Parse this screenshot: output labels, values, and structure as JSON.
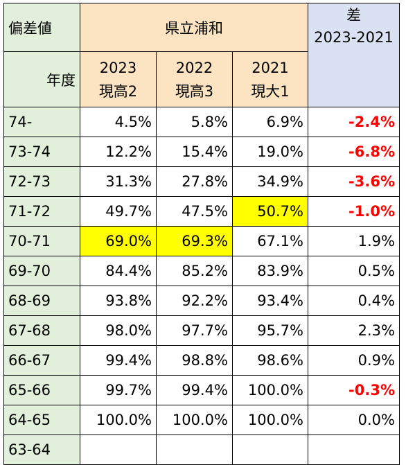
{
  "header": {
    "corner_label": "偏差値",
    "school": "県立浦和",
    "diff_label_line1": "差",
    "diff_label_line2": "2023-2021",
    "year_label": "年度",
    "years": [
      {
        "year": "2023",
        "grade": "現高2"
      },
      {
        "year": "2022",
        "grade": "現高3"
      },
      {
        "year": "2021",
        "grade": "現大1"
      }
    ]
  },
  "rows": [
    {
      "range": "74-",
      "v2023": "4.5%",
      "v2022": "5.8%",
      "v2021": "6.9%",
      "diff": "-2.4%"
    },
    {
      "range": "73-74",
      "v2023": "12.2%",
      "v2022": "15.4%",
      "v2021": "19.0%",
      "diff": "-6.8%"
    },
    {
      "range": "72-73",
      "v2023": "31.3%",
      "v2022": "27.8%",
      "v2021": "34.9%",
      "diff": "-3.6%"
    },
    {
      "range": "71-72",
      "v2023": "49.7%",
      "v2022": "47.5%",
      "v2021": "50.7%",
      "diff": "-1.0%"
    },
    {
      "range": "70-71",
      "v2023": "69.0%",
      "v2022": "69.3%",
      "v2021": "67.1%",
      "diff": "1.9%"
    },
    {
      "range": "69-70",
      "v2023": "84.4%",
      "v2022": "85.2%",
      "v2021": "83.9%",
      "diff": "0.5%"
    },
    {
      "range": "68-69",
      "v2023": "93.8%",
      "v2022": "92.2%",
      "v2021": "93.4%",
      "diff": "0.4%"
    },
    {
      "range": "67-68",
      "v2023": "98.0%",
      "v2022": "97.7%",
      "v2021": "95.7%",
      "diff": "2.3%"
    },
    {
      "range": "66-67",
      "v2023": "99.4%",
      "v2022": "98.8%",
      "v2021": "98.6%",
      "diff": "0.9%"
    },
    {
      "range": "65-66",
      "v2023": "99.7%",
      "v2022": "99.4%",
      "v2021": "100.0%",
      "diff": "-0.3%"
    },
    {
      "range": "64-65",
      "v2023": "100.0%",
      "v2022": "100.0%",
      "v2021": "100.0%",
      "diff": "0.0%"
    },
    {
      "range": "63-64",
      "v2023": "",
      "v2022": "",
      "v2021": "",
      "diff": ""
    }
  ],
  "colors": {
    "label_bg": "#e2efda",
    "school_header_bg": "#fce4c2",
    "diff_header_bg": "#d9e1f2",
    "highlight": "#ffff00",
    "negative_text": "#ff0000"
  }
}
